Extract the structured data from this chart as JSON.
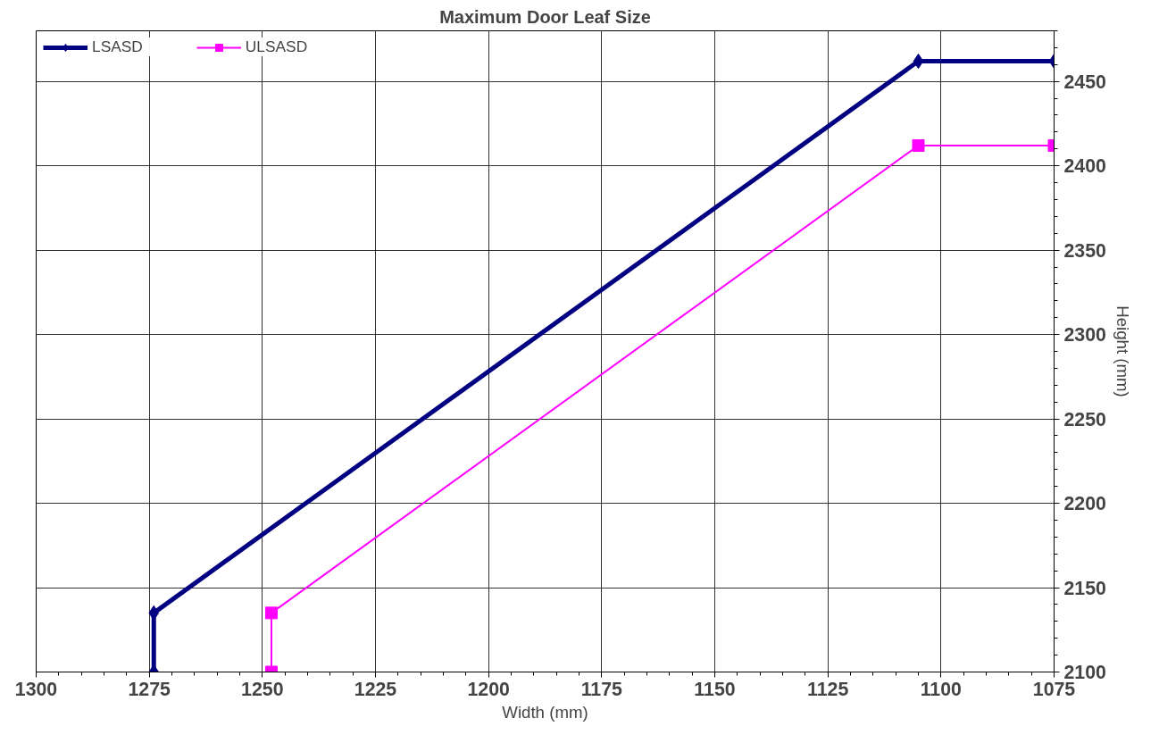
{
  "chart_data": {
    "type": "line",
    "title": "Maximum Door Leaf Size",
    "xlabel": "Width (mm)",
    "ylabel": "Height (mm)",
    "series": [
      {
        "name": "LSASD",
        "color": "#000080",
        "x": [
          1274,
          1274,
          1105,
          1075
        ],
        "values": [
          2100,
          2135,
          2462,
          2462
        ],
        "marker": "diamond"
      },
      {
        "name": "ULSASD",
        "color": "#ff00ff",
        "x": [
          1248,
          1248,
          1105,
          1075
        ],
        "values": [
          2100,
          2135,
          2412,
          2412
        ],
        "marker": "square"
      }
    ],
    "xlim": [
      1300,
      1075
    ],
    "xticks": [
      1300,
      1275,
      1250,
      1225,
      1200,
      1175,
      1150,
      1125,
      1100,
      1075
    ],
    "ylim": [
      2100,
      2480
    ],
    "yticks": [
      2100,
      2150,
      2200,
      2250,
      2300,
      2350,
      2400,
      2450
    ],
    "grid": true,
    "legend": "top",
    "line_style": "solid"
  }
}
